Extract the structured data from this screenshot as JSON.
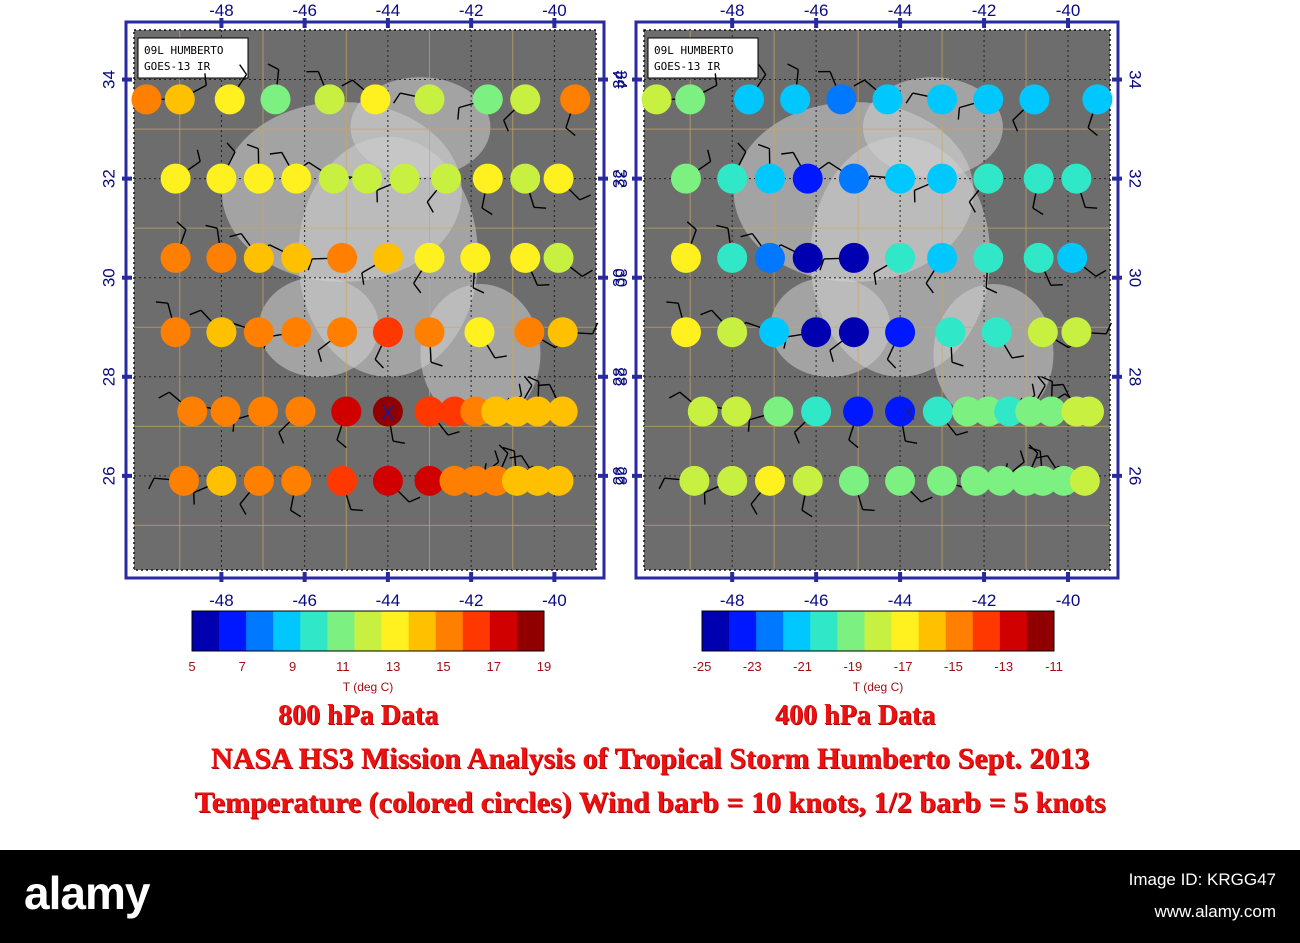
{
  "panels": [
    {
      "id": "left",
      "label_line1": "09L HUMBERTO",
      "label_line2": "GOES-13 IR",
      "caption": "800 hPa Data",
      "colorbar_ticks": [
        "5",
        "7",
        "9",
        "11",
        "13",
        "15",
        "17",
        "19"
      ],
      "colorbar_label": "T (deg C)",
      "tmin": 5,
      "tmax": 19,
      "rows": [
        {
          "lat": 33.6,
          "points": [
            [
              -49.8,
              16
            ],
            [
              -49.0,
              14
            ],
            [
              -47.8,
              13
            ],
            [
              -46.7,
              11
            ],
            [
              -45.4,
              12
            ],
            [
              -44.3,
              13
            ],
            [
              -43.0,
              12
            ],
            [
              -41.6,
              11
            ],
            [
              -40.7,
              12
            ],
            [
              -39.5,
              15
            ]
          ]
        },
        {
          "lat": 32.0,
          "points": [
            [
              -49.1,
              13
            ],
            [
              -48.0,
              13
            ],
            [
              -47.1,
              13
            ],
            [
              -46.2,
              13
            ],
            [
              -45.3,
              12
            ],
            [
              -44.5,
              12
            ],
            [
              -43.6,
              12
            ],
            [
              -42.6,
              12
            ],
            [
              -41.6,
              13
            ],
            [
              -40.7,
              12
            ],
            [
              -39.9,
              13
            ]
          ]
        },
        {
          "lat": 30.4,
          "points": [
            [
              -49.1,
              15
            ],
            [
              -48.0,
              15
            ],
            [
              -47.1,
              14
            ],
            [
              -46.2,
              14
            ],
            [
              -45.1,
              15
            ],
            [
              -44.0,
              14
            ],
            [
              -43.0,
              13
            ],
            [
              -41.9,
              13
            ],
            [
              -40.7,
              13
            ],
            [
              -39.9,
              12
            ]
          ]
        },
        {
          "lat": 28.9,
          "points": [
            [
              -49.1,
              15
            ],
            [
              -48.0,
              14
            ],
            [
              -47.1,
              15
            ],
            [
              -46.2,
              16
            ],
            [
              -45.1,
              16
            ],
            [
              -44.0,
              17
            ],
            [
              -43.0,
              16
            ],
            [
              -41.8,
              13
            ],
            [
              -40.6,
              16
            ],
            [
              -39.8,
              14
            ]
          ]
        },
        {
          "lat": 27.3,
          "points": [
            [
              -48.7,
              15
            ],
            [
              -47.9,
              15
            ],
            [
              -47.0,
              16
            ],
            [
              -46.1,
              16
            ],
            [
              -45.0,
              18
            ],
            [
              -44.0,
              19
            ],
            [
              -43.0,
              17
            ],
            [
              -42.4,
              17
            ],
            [
              -41.9,
              15
            ],
            [
              -41.4,
              14
            ],
            [
              -40.9,
              14
            ],
            [
              -40.4,
              14
            ],
            [
              -39.8,
              14
            ]
          ]
        },
        {
          "lat": 25.9,
          "points": [
            [
              -48.9,
              15
            ],
            [
              -48.0,
              14
            ],
            [
              -47.1,
              15
            ],
            [
              -46.2,
              16
            ],
            [
              -45.1,
              17
            ],
            [
              -44.0,
              18
            ],
            [
              -43.0,
              18
            ],
            [
              -42.4,
              16
            ],
            [
              -41.9,
              15
            ],
            [
              -41.4,
              15
            ],
            [
              -40.9,
              14
            ],
            [
              -40.4,
              14
            ],
            [
              -39.9,
              14
            ]
          ]
        }
      ],
      "marker": {
        "lon": -44.0,
        "lat": 27.3
      }
    },
    {
      "id": "right",
      "label_line1": "09L HUMBERTO",
      "label_line2": "GOES-13 IR",
      "caption": "400 hPa Data",
      "colorbar_ticks": [
        "-25",
        "-23",
        "-21",
        "-19",
        "-17",
        "-15",
        "-13",
        "-11"
      ],
      "colorbar_label": "T (deg C)",
      "tmin": -25,
      "tmax": -11,
      "rows": [
        {
          "lat": 33.6,
          "points": [
            [
              -49.8,
              -18
            ],
            [
              -49.0,
              -19
            ],
            [
              -47.6,
              -21
            ],
            [
              -46.5,
              -22
            ],
            [
              -45.4,
              -23
            ],
            [
              -44.3,
              -22
            ],
            [
              -43.0,
              -21
            ],
            [
              -41.9,
              -21
            ],
            [
              -40.8,
              -21
            ],
            [
              -39.3,
              -21
            ]
          ]
        },
        {
          "lat": 32.0,
          "points": [
            [
              -49.1,
              -19
            ],
            [
              -48.0,
              -20
            ],
            [
              -47.1,
              -22
            ],
            [
              -46.2,
              -24
            ],
            [
              -45.1,
              -23
            ],
            [
              -44.0,
              -22
            ],
            [
              -43.0,
              -21
            ],
            [
              -41.9,
              -20
            ],
            [
              -40.7,
              -20
            ],
            [
              -39.8,
              -20
            ]
          ]
        },
        {
          "lat": 30.4,
          "points": [
            [
              -49.1,
              -17
            ],
            [
              -48.0,
              -20
            ],
            [
              -47.1,
              -23
            ],
            [
              -46.2,
              -25
            ],
            [
              -45.1,
              -25
            ],
            [
              -44.0,
              -20
            ],
            [
              -43.0,
              -21
            ],
            [
              -41.9,
              -20
            ],
            [
              -40.7,
              -20
            ],
            [
              -39.9,
              -21
            ]
          ]
        },
        {
          "lat": 28.9,
          "points": [
            [
              -49.1,
              -17
            ],
            [
              -48.0,
              -18
            ],
            [
              -47.0,
              -22
            ],
            [
              -46.0,
              -25
            ],
            [
              -45.1,
              -25
            ],
            [
              -44.0,
              -24
            ],
            [
              -42.8,
              -20
            ],
            [
              -41.7,
              -20
            ],
            [
              -40.6,
              -18
            ],
            [
              -39.8,
              -18
            ]
          ]
        },
        {
          "lat": 27.3,
          "points": [
            [
              -48.7,
              -18
            ],
            [
              -47.9,
              -18
            ],
            [
              -46.9,
              -19
            ],
            [
              -46.0,
              -20
            ],
            [
              -45.0,
              -24
            ],
            [
              -44.0,
              -24
            ],
            [
              -43.1,
              -20
            ],
            [
              -42.4,
              -19
            ],
            [
              -41.9,
              -19
            ],
            [
              -41.4,
              -20
            ],
            [
              -40.9,
              -19
            ],
            [
              -40.4,
              -19
            ],
            [
              -39.8,
              -18
            ],
            [
              -39.5,
              -18
            ]
          ]
        },
        {
          "lat": 25.9,
          "points": [
            [
              -48.9,
              -18
            ],
            [
              -48.0,
              -18
            ],
            [
              -47.1,
              -17
            ],
            [
              -46.2,
              -18
            ],
            [
              -45.1,
              -19
            ],
            [
              -44.0,
              -19
            ],
            [
              -43.0,
              -19
            ],
            [
              -42.2,
              -19
            ],
            [
              -41.6,
              -19
            ],
            [
              -41.0,
              -19
            ],
            [
              -40.6,
              -19
            ],
            [
              -40.1,
              -19
            ],
            [
              -39.6,
              -18
            ]
          ]
        }
      ],
      "marker": {
        "lon": -43.8,
        "lat": 27.3
      }
    }
  ],
  "axis": {
    "lon_ticks": [
      "-48",
      "-46",
      "-44",
      "-42",
      "-40"
    ],
    "lat_ticks": [
      "34",
      "32",
      "30",
      "28",
      "26"
    ]
  },
  "title": "NASA HS3 Mission Analysis of Tropical Storm Humberto  Sept. 2013",
  "legend_text": "Temperature (colored circles) Wind barb = 10 knots, 1/2 barb = 5 knots",
  "footer": {
    "logo": "alamy",
    "right_top": "Image ID: KRGG47",
    "right_bottom": "www.alamy.com"
  },
  "colors": {
    "frame": "#1a1aa0",
    "caption": "#ee1111",
    "grid": "#c9a760"
  }
}
